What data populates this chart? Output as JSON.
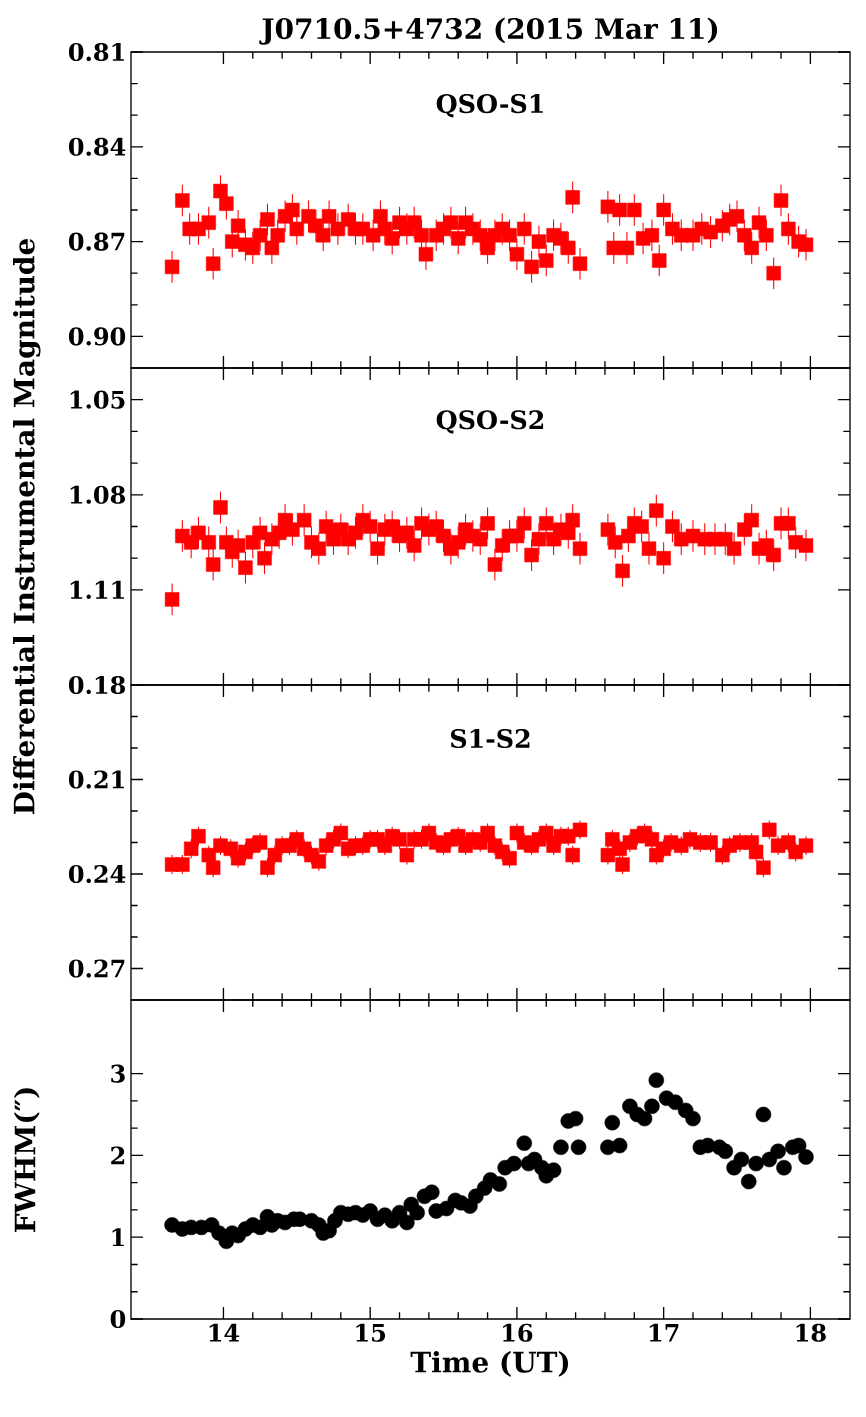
{
  "chart_data": [
    {
      "type": "scatter",
      "title": "J0710.5+4732 (2015 Mar 11)",
      "annotations": [
        "QSO-S1"
      ],
      "color": "#ff0000",
      "marker": "square",
      "tick_labels": "y",
      "xlim": [
        13.37,
        18.27
      ],
      "ylim": [
        0.91,
        0.81
      ],
      "yticks": [
        0.81,
        0.84,
        0.87,
        {
          "value": 0.9,
          "label": "0.90"
        }
      ],
      "x": [
        13.65,
        13.72,
        13.77,
        13.83,
        13.9,
        13.93,
        13.98,
        14.02,
        14.06,
        14.1,
        14.15,
        14.2,
        14.25,
        14.3,
        14.33,
        14.37,
        14.42,
        14.47,
        14.5,
        14.58,
        14.63,
        14.68,
        14.72,
        14.78,
        14.85,
        14.9,
        14.95,
        15.02,
        15.07,
        15.1,
        15.15,
        15.2,
        15.25,
        15.3,
        15.35,
        15.38,
        15.45,
        15.5,
        15.55,
        15.6,
        15.65,
        15.7,
        15.75,
        15.8,
        15.85,
        15.9,
        15.95,
        16.0,
        16.05,
        16.1,
        16.15,
        16.2,
        16.25,
        16.3,
        16.35,
        16.38,
        16.43,
        16.62,
        16.66,
        16.7,
        16.75,
        16.8,
        16.86,
        16.92,
        16.97,
        17.0,
        17.06,
        17.12,
        17.2,
        17.26,
        17.32,
        17.4,
        17.45,
        17.5,
        17.55,
        17.6,
        17.65,
        17.7,
        17.75,
        17.8,
        17.85,
        17.92,
        17.97
      ],
      "values": [
        0.878,
        0.857,
        0.866,
        0.866,
        0.864,
        0.877,
        0.854,
        0.858,
        0.87,
        0.865,
        0.871,
        0.872,
        0.868,
        0.863,
        0.872,
        0.868,
        0.862,
        0.86,
        0.866,
        0.862,
        0.865,
        0.868,
        0.862,
        0.866,
        0.863,
        0.866,
        0.866,
        0.868,
        0.862,
        0.866,
        0.869,
        0.864,
        0.866,
        0.864,
        0.868,
        0.874,
        0.868,
        0.866,
        0.864,
        0.869,
        0.864,
        0.866,
        0.868,
        0.872,
        0.868,
        0.866,
        0.868,
        0.874,
        0.866,
        0.878,
        0.87,
        0.876,
        0.868,
        0.869,
        0.872,
        0.856,
        0.877,
        0.859,
        0.872,
        0.86,
        0.872,
        0.86,
        0.869,
        0.868,
        0.876,
        0.86,
        0.866,
        0.868,
        0.868,
        0.866,
        0.867,
        0.865,
        0.863,
        0.862,
        0.868,
        0.872,
        0.864,
        0.868,
        0.88,
        0.857,
        0.866,
        0.87,
        0.871
      ],
      "errors": [
        0.005,
        0.005,
        0.005,
        0.005,
        0.005,
        0.005,
        0.005,
        0.005,
        0.005,
        0.005,
        0.005,
        0.005,
        0.005,
        0.005,
        0.005,
        0.005,
        0.005,
        0.005,
        0.005,
        0.005,
        0.005,
        0.005,
        0.005,
        0.005,
        0.005,
        0.005,
        0.005,
        0.005,
        0.005,
        0.005,
        0.005,
        0.005,
        0.005,
        0.005,
        0.005,
        0.005,
        0.005,
        0.005,
        0.005,
        0.005,
        0.005,
        0.005,
        0.005,
        0.005,
        0.005,
        0.005,
        0.005,
        0.005,
        0.005,
        0.005,
        0.005,
        0.005,
        0.005,
        0.005,
        0.005,
        0.005,
        0.005,
        0.005,
        0.005,
        0.005,
        0.005,
        0.005,
        0.005,
        0.005,
        0.005,
        0.005,
        0.005,
        0.005,
        0.005,
        0.005,
        0.005,
        0.005,
        0.005,
        0.005,
        0.005,
        0.005,
        0.005,
        0.005,
        0.005,
        0.005,
        0.005,
        0.005,
        0.005
      ]
    },
    {
      "type": "scatter",
      "ylabel": "Differential Instrumental Magnitude",
      "annotations": [
        "QSO-S2"
      ],
      "color": "#ff0000",
      "marker": "square",
      "tick_labels": "y",
      "xlim": [
        13.37,
        18.27
      ],
      "ylim": [
        1.14,
        1.04
      ],
      "yticks": [
        1.05,
        1.08,
        1.11
      ],
      "x": [
        13.65,
        13.72,
        13.78,
        13.83,
        13.9,
        13.93,
        13.98,
        14.02,
        14.06,
        14.1,
        14.15,
        14.2,
        14.25,
        14.28,
        14.33,
        14.38,
        14.42,
        14.47,
        14.55,
        14.6,
        14.65,
        14.7,
        14.75,
        14.8,
        14.85,
        14.9,
        14.95,
        15.0,
        15.05,
        15.1,
        15.15,
        15.2,
        15.25,
        15.3,
        15.35,
        15.4,
        15.45,
        15.5,
        15.55,
        15.6,
        15.65,
        15.7,
        15.75,
        15.8,
        15.85,
        15.9,
        15.95,
        16.0,
        16.05,
        16.1,
        16.15,
        16.2,
        16.25,
        16.3,
        16.35,
        16.38,
        16.43,
        16.62,
        16.67,
        16.72,
        16.76,
        16.8,
        16.85,
        16.9,
        16.95,
        17.0,
        17.06,
        17.12,
        17.2,
        17.28,
        17.35,
        17.42,
        17.48,
        17.55,
        17.6,
        17.65,
        17.7,
        17.75,
        17.8,
        17.85,
        17.9,
        17.97
      ],
      "values": [
        1.113,
        1.093,
        1.095,
        1.092,
        1.095,
        1.102,
        1.084,
        1.095,
        1.098,
        1.096,
        1.103,
        1.095,
        1.092,
        1.1,
        1.094,
        1.092,
        1.088,
        1.091,
        1.088,
        1.095,
        1.097,
        1.09,
        1.094,
        1.091,
        1.094,
        1.092,
        1.088,
        1.09,
        1.097,
        1.091,
        1.09,
        1.093,
        1.092,
        1.096,
        1.089,
        1.091,
        1.09,
        1.093,
        1.097,
        1.095,
        1.091,
        1.093,
        1.094,
        1.089,
        1.102,
        1.096,
        1.093,
        1.093,
        1.089,
        1.099,
        1.094,
        1.089,
        1.094,
        1.091,
        1.092,
        1.088,
        1.097,
        1.091,
        1.095,
        1.104,
        1.093,
        1.089,
        1.09,
        1.097,
        1.085,
        1.1,
        1.09,
        1.094,
        1.093,
        1.094,
        1.094,
        1.094,
        1.097,
        1.091,
        1.088,
        1.097,
        1.096,
        1.099,
        1.089,
        1.089,
        1.095,
        1.096
      ],
      "errors": [
        0.005,
        0.005,
        0.005,
        0.005,
        0.005,
        0.005,
        0.005,
        0.005,
        0.005,
        0.005,
        0.005,
        0.005,
        0.005,
        0.005,
        0.005,
        0.005,
        0.005,
        0.005,
        0.005,
        0.005,
        0.005,
        0.005,
        0.005,
        0.005,
        0.005,
        0.005,
        0.005,
        0.005,
        0.005,
        0.005,
        0.005,
        0.005,
        0.005,
        0.005,
        0.005,
        0.005,
        0.005,
        0.005,
        0.005,
        0.005,
        0.005,
        0.005,
        0.005,
        0.005,
        0.005,
        0.005,
        0.005,
        0.005,
        0.005,
        0.005,
        0.005,
        0.005,
        0.005,
        0.005,
        0.005,
        0.005,
        0.005,
        0.005,
        0.005,
        0.005,
        0.005,
        0.005,
        0.005,
        0.005,
        0.005,
        0.005,
        0.005,
        0.005,
        0.005,
        0.005,
        0.005,
        0.005,
        0.005,
        0.005,
        0.005,
        0.005,
        0.005,
        0.005,
        0.005,
        0.005,
        0.005,
        0.005
      ]
    },
    {
      "type": "scatter",
      "annotations": [
        "S1-S2"
      ],
      "color": "#ff0000",
      "marker": "square",
      "tick_labels": "y",
      "xlim": [
        13.37,
        18.27
      ],
      "ylim": [
        0.28,
        0.18
      ],
      "yticks": [
        0.18,
        0.21,
        0.24,
        0.27
      ],
      "x": [
        13.65,
        13.72,
        13.78,
        13.83,
        13.9,
        13.93,
        13.98,
        14.05,
        14.1,
        14.15,
        14.2,
        14.25,
        14.3,
        14.35,
        14.4,
        14.45,
        14.5,
        14.55,
        14.6,
        14.65,
        14.7,
        14.75,
        14.8,
        14.85,
        14.9,
        14.95,
        15.0,
        15.05,
        15.1,
        15.15,
        15.2,
        15.25,
        15.3,
        15.35,
        15.4,
        15.45,
        15.5,
        15.55,
        15.6,
        15.65,
        15.7,
        15.75,
        15.8,
        15.85,
        15.9,
        15.95,
        16.0,
        16.05,
        16.1,
        16.15,
        16.2,
        16.25,
        16.3,
        16.35,
        16.38,
        16.43,
        16.62,
        16.65,
        16.7,
        16.72,
        16.77,
        16.82,
        16.87,
        16.92,
        16.95,
        17.0,
        17.05,
        17.12,
        17.18,
        17.25,
        17.32,
        17.4,
        17.45,
        17.52,
        17.6,
        17.63,
        17.68,
        17.72,
        17.78,
        17.85,
        17.9,
        17.97
      ],
      "values": [
        0.237,
        0.237,
        0.232,
        0.228,
        0.234,
        0.238,
        0.231,
        0.232,
        0.235,
        0.233,
        0.231,
        0.23,
        0.238,
        0.234,
        0.231,
        0.231,
        0.229,
        0.232,
        0.234,
        0.236,
        0.231,
        0.229,
        0.227,
        0.232,
        0.231,
        0.231,
        0.229,
        0.229,
        0.231,
        0.228,
        0.229,
        0.234,
        0.229,
        0.229,
        0.227,
        0.23,
        0.231,
        0.229,
        0.228,
        0.231,
        0.229,
        0.23,
        0.227,
        0.231,
        0.233,
        0.235,
        0.227,
        0.23,
        0.231,
        0.229,
        0.227,
        0.231,
        0.228,
        0.228,
        0.234,
        0.226,
        0.234,
        0.229,
        0.232,
        0.237,
        0.23,
        0.228,
        0.227,
        0.229,
        0.234,
        0.232,
        0.23,
        0.231,
        0.229,
        0.23,
        0.23,
        0.234,
        0.231,
        0.23,
        0.23,
        0.233,
        0.238,
        0.226,
        0.231,
        0.23,
        0.233,
        0.231
      ],
      "errors": [
        0.003,
        0.003,
        0.003,
        0.003,
        0.003,
        0.003,
        0.003,
        0.003,
        0.003,
        0.003,
        0.003,
        0.003,
        0.003,
        0.003,
        0.003,
        0.003,
        0.003,
        0.003,
        0.003,
        0.003,
        0.003,
        0.003,
        0.003,
        0.003,
        0.003,
        0.003,
        0.003,
        0.003,
        0.003,
        0.003,
        0.003,
        0.003,
        0.003,
        0.003,
        0.003,
        0.003,
        0.003,
        0.003,
        0.003,
        0.003,
        0.003,
        0.003,
        0.003,
        0.003,
        0.003,
        0.003,
        0.003,
        0.003,
        0.003,
        0.003,
        0.003,
        0.003,
        0.003,
        0.003,
        0.003,
        0.003,
        0.003,
        0.003,
        0.003,
        0.003,
        0.003,
        0.003,
        0.003,
        0.003,
        0.003,
        0.003,
        0.003,
        0.003,
        0.003,
        0.003,
        0.003,
        0.003,
        0.003,
        0.003,
        0.003,
        0.003,
        0.003,
        0.003,
        0.003,
        0.003,
        0.003,
        0.003
      ]
    },
    {
      "type": "scatter",
      "xlabel": "Time (UT)",
      "ylabel": "FWHM(″)",
      "color": "#000000",
      "marker": "circle",
      "xlim": [
        13.37,
        18.27
      ],
      "ylim": [
        0,
        3.9
      ],
      "xticks": [
        14,
        15,
        16,
        17,
        18
      ],
      "yticks": [
        0,
        1,
        2,
        3
      ],
      "x": [
        13.65,
        13.72,
        13.78,
        13.85,
        13.92,
        13.97,
        14.02,
        14.06,
        14.1,
        14.15,
        14.2,
        14.25,
        14.3,
        14.33,
        14.37,
        14.42,
        14.48,
        14.52,
        14.6,
        14.65,
        14.68,
        14.72,
        14.76,
        14.8,
        14.85,
        14.9,
        14.95,
        15.0,
        15.05,
        15.1,
        15.15,
        15.2,
        15.25,
        15.28,
        15.32,
        15.37,
        15.42,
        15.45,
        15.52,
        15.58,
        15.62,
        15.68,
        15.72,
        15.78,
        15.82,
        15.88,
        15.92,
        15.98,
        16.05,
        16.08,
        16.12,
        16.17,
        16.2,
        16.25,
        16.3,
        16.35,
        16.4,
        16.42,
        16.62,
        16.65,
        16.7,
        16.77,
        16.82,
        16.87,
        16.92,
        16.95,
        17.02,
        17.08,
        17.15,
        17.2,
        17.25,
        17.3,
        17.38,
        17.42,
        17.48,
        17.53,
        17.58,
        17.63,
        17.68,
        17.72,
        17.78,
        17.82,
        17.88,
        17.92,
        17.97
      ],
      "values": [
        1.15,
        1.1,
        1.12,
        1.12,
        1.15,
        1.05,
        0.95,
        1.05,
        1.02,
        1.1,
        1.15,
        1.12,
        1.25,
        1.15,
        1.2,
        1.18,
        1.22,
        1.22,
        1.2,
        1.15,
        1.05,
        1.08,
        1.2,
        1.3,
        1.28,
        1.3,
        1.27,
        1.32,
        1.22,
        1.27,
        1.2,
        1.3,
        1.18,
        1.4,
        1.3,
        1.5,
        1.55,
        1.32,
        1.35,
        1.45,
        1.42,
        1.38,
        1.5,
        1.6,
        1.7,
        1.65,
        1.85,
        1.9,
        2.15,
        1.9,
        1.95,
        1.85,
        1.75,
        1.82,
        2.1,
        2.42,
        2.45,
        2.1,
        2.1,
        2.4,
        2.12,
        2.6,
        2.5,
        2.45,
        2.6,
        2.92,
        2.7,
        2.65,
        2.55,
        2.45,
        2.1,
        2.12,
        2.1,
        2.05,
        1.85,
        1.95,
        1.68,
        1.9,
        2.5,
        1.95,
        2.05,
        1.85,
        2.1,
        2.12,
        1.98
      ]
    }
  ]
}
